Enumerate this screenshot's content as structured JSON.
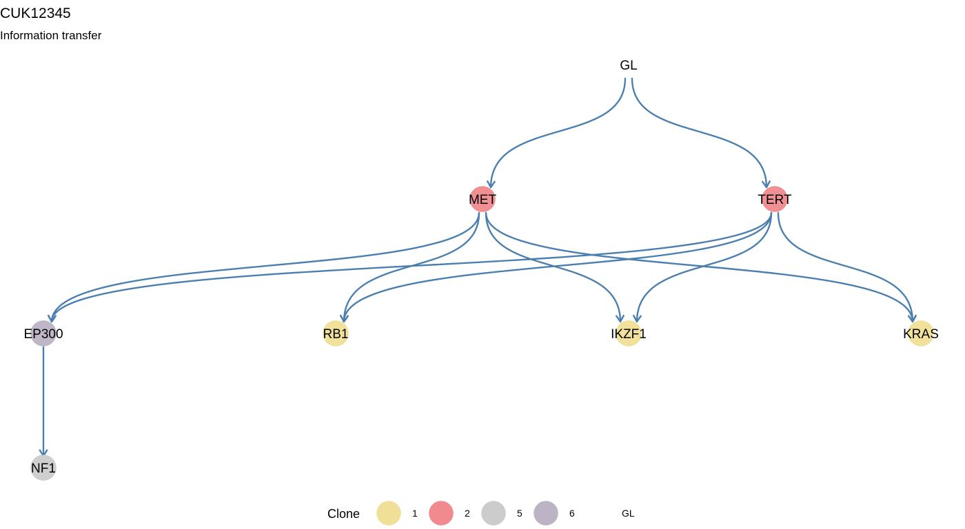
{
  "header": {
    "title": "CUK12345",
    "subtitle": "Information transfer"
  },
  "colors": {
    "edge": "#4a7fb0",
    "clone_1": "#f0df96",
    "clone_2": "#f08a8e",
    "clone_5": "#cccccc",
    "clone_6": "#bcb3c5"
  },
  "nodes": [
    {
      "id": "GL",
      "label": "GL",
      "clone": "GL"
    },
    {
      "id": "MET",
      "label": "MET",
      "clone": "2"
    },
    {
      "id": "TERT",
      "label": "TERT",
      "clone": "2"
    },
    {
      "id": "EP300",
      "label": "EP300",
      "clone": "6"
    },
    {
      "id": "RB1",
      "label": "RB1",
      "clone": "1"
    },
    {
      "id": "IKZF1",
      "label": "IKZF1",
      "clone": "1"
    },
    {
      "id": "KRAS",
      "label": "KRAS",
      "clone": "1"
    },
    {
      "id": "NF1",
      "label": "NF1",
      "clone": "5"
    }
  ],
  "edges": [
    {
      "from": "GL",
      "to": "MET"
    },
    {
      "from": "GL",
      "to": "TERT"
    },
    {
      "from": "MET",
      "to": "EP300"
    },
    {
      "from": "MET",
      "to": "RB1"
    },
    {
      "from": "MET",
      "to": "IKZF1"
    },
    {
      "from": "MET",
      "to": "KRAS"
    },
    {
      "from": "TERT",
      "to": "EP300"
    },
    {
      "from": "TERT",
      "to": "RB1"
    },
    {
      "from": "TERT",
      "to": "IKZF1"
    },
    {
      "from": "TERT",
      "to": "KRAS"
    },
    {
      "from": "EP300",
      "to": "NF1"
    }
  ],
  "legend": {
    "title": "Clone",
    "items": [
      {
        "label": "1",
        "color_key": "clone_1"
      },
      {
        "label": "2",
        "color_key": "clone_2"
      },
      {
        "label": "5",
        "color_key": "clone_5"
      },
      {
        "label": "6",
        "color_key": "clone_6"
      },
      {
        "label": "GL",
        "color_key": null
      }
    ]
  }
}
